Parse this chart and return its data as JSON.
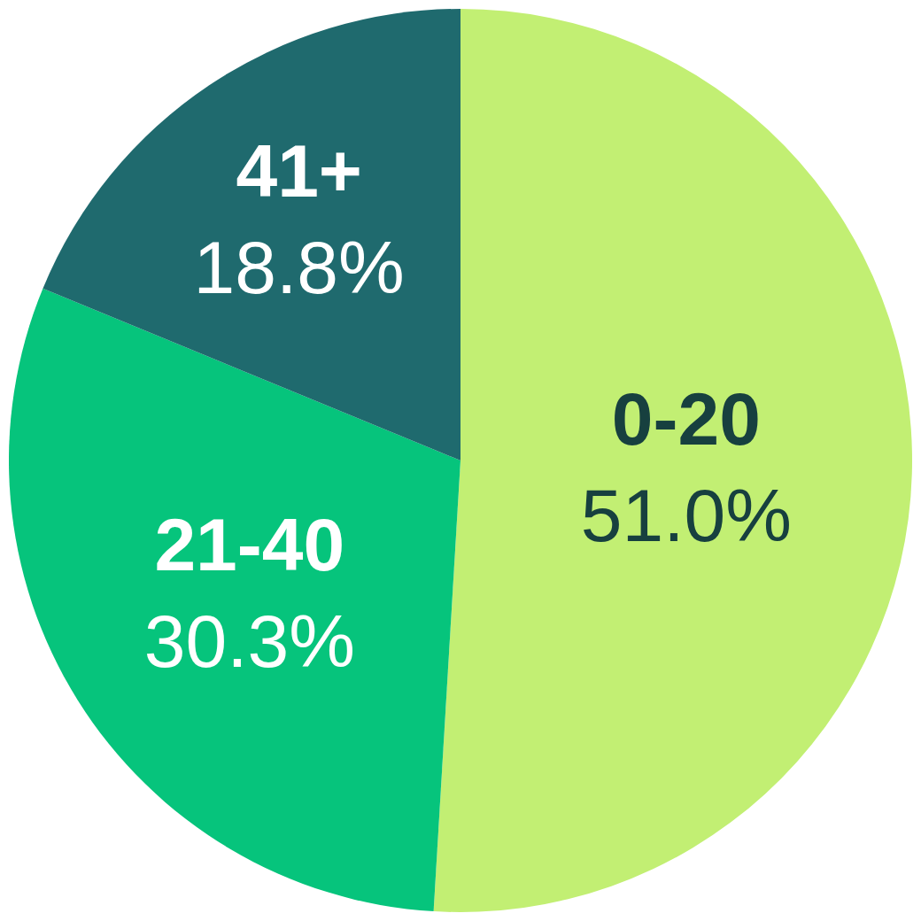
{
  "chart_data": {
    "type": "pie",
    "categories": [
      "0-20",
      "21-40",
      "41+"
    ],
    "values": [
      51.0,
      30.3,
      18.8
    ],
    "colors": [
      "#c2ef73",
      "#06c47c",
      "#1f6a6e"
    ],
    "value_labels": [
      "51.0%",
      "30.3%",
      "18.8%"
    ],
    "legend": false
  }
}
